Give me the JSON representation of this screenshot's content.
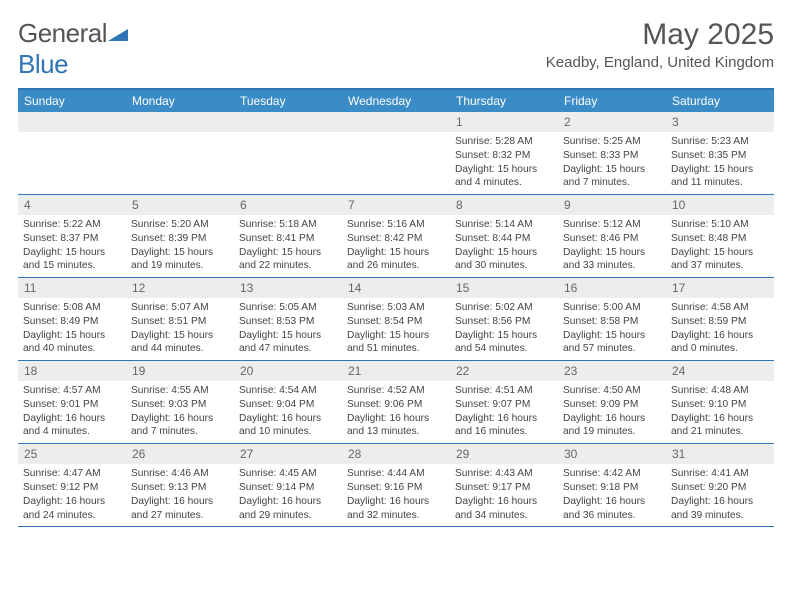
{
  "logo": {
    "text1": "General",
    "text2": "Blue"
  },
  "title": "May 2025",
  "location": "Keadby, England, United Kingdom",
  "colors": {
    "accent": "#2f75b5",
    "header_bg": "#3b8bc6",
    "daynum_bg": "#ededed",
    "text": "#555555"
  },
  "day_names": [
    "Sunday",
    "Monday",
    "Tuesday",
    "Wednesday",
    "Thursday",
    "Friday",
    "Saturday"
  ],
  "weeks": [
    [
      {
        "n": "",
        "sr": "",
        "ss": "",
        "dl1": "",
        "dl2": ""
      },
      {
        "n": "",
        "sr": "",
        "ss": "",
        "dl1": "",
        "dl2": ""
      },
      {
        "n": "",
        "sr": "",
        "ss": "",
        "dl1": "",
        "dl2": ""
      },
      {
        "n": "",
        "sr": "",
        "ss": "",
        "dl1": "",
        "dl2": ""
      },
      {
        "n": "1",
        "sr": "Sunrise: 5:28 AM",
        "ss": "Sunset: 8:32 PM",
        "dl1": "Daylight: 15 hours",
        "dl2": "and 4 minutes."
      },
      {
        "n": "2",
        "sr": "Sunrise: 5:25 AM",
        "ss": "Sunset: 8:33 PM",
        "dl1": "Daylight: 15 hours",
        "dl2": "and 7 minutes."
      },
      {
        "n": "3",
        "sr": "Sunrise: 5:23 AM",
        "ss": "Sunset: 8:35 PM",
        "dl1": "Daylight: 15 hours",
        "dl2": "and 11 minutes."
      }
    ],
    [
      {
        "n": "4",
        "sr": "Sunrise: 5:22 AM",
        "ss": "Sunset: 8:37 PM",
        "dl1": "Daylight: 15 hours",
        "dl2": "and 15 minutes."
      },
      {
        "n": "5",
        "sr": "Sunrise: 5:20 AM",
        "ss": "Sunset: 8:39 PM",
        "dl1": "Daylight: 15 hours",
        "dl2": "and 19 minutes."
      },
      {
        "n": "6",
        "sr": "Sunrise: 5:18 AM",
        "ss": "Sunset: 8:41 PM",
        "dl1": "Daylight: 15 hours",
        "dl2": "and 22 minutes."
      },
      {
        "n": "7",
        "sr": "Sunrise: 5:16 AM",
        "ss": "Sunset: 8:42 PM",
        "dl1": "Daylight: 15 hours",
        "dl2": "and 26 minutes."
      },
      {
        "n": "8",
        "sr": "Sunrise: 5:14 AM",
        "ss": "Sunset: 8:44 PM",
        "dl1": "Daylight: 15 hours",
        "dl2": "and 30 minutes."
      },
      {
        "n": "9",
        "sr": "Sunrise: 5:12 AM",
        "ss": "Sunset: 8:46 PM",
        "dl1": "Daylight: 15 hours",
        "dl2": "and 33 minutes."
      },
      {
        "n": "10",
        "sr": "Sunrise: 5:10 AM",
        "ss": "Sunset: 8:48 PM",
        "dl1": "Daylight: 15 hours",
        "dl2": "and 37 minutes."
      }
    ],
    [
      {
        "n": "11",
        "sr": "Sunrise: 5:08 AM",
        "ss": "Sunset: 8:49 PM",
        "dl1": "Daylight: 15 hours",
        "dl2": "and 40 minutes."
      },
      {
        "n": "12",
        "sr": "Sunrise: 5:07 AM",
        "ss": "Sunset: 8:51 PM",
        "dl1": "Daylight: 15 hours",
        "dl2": "and 44 minutes."
      },
      {
        "n": "13",
        "sr": "Sunrise: 5:05 AM",
        "ss": "Sunset: 8:53 PM",
        "dl1": "Daylight: 15 hours",
        "dl2": "and 47 minutes."
      },
      {
        "n": "14",
        "sr": "Sunrise: 5:03 AM",
        "ss": "Sunset: 8:54 PM",
        "dl1": "Daylight: 15 hours",
        "dl2": "and 51 minutes."
      },
      {
        "n": "15",
        "sr": "Sunrise: 5:02 AM",
        "ss": "Sunset: 8:56 PM",
        "dl1": "Daylight: 15 hours",
        "dl2": "and 54 minutes."
      },
      {
        "n": "16",
        "sr": "Sunrise: 5:00 AM",
        "ss": "Sunset: 8:58 PM",
        "dl1": "Daylight: 15 hours",
        "dl2": "and 57 minutes."
      },
      {
        "n": "17",
        "sr": "Sunrise: 4:58 AM",
        "ss": "Sunset: 8:59 PM",
        "dl1": "Daylight: 16 hours",
        "dl2": "and 0 minutes."
      }
    ],
    [
      {
        "n": "18",
        "sr": "Sunrise: 4:57 AM",
        "ss": "Sunset: 9:01 PM",
        "dl1": "Daylight: 16 hours",
        "dl2": "and 4 minutes."
      },
      {
        "n": "19",
        "sr": "Sunrise: 4:55 AM",
        "ss": "Sunset: 9:03 PM",
        "dl1": "Daylight: 16 hours",
        "dl2": "and 7 minutes."
      },
      {
        "n": "20",
        "sr": "Sunrise: 4:54 AM",
        "ss": "Sunset: 9:04 PM",
        "dl1": "Daylight: 16 hours",
        "dl2": "and 10 minutes."
      },
      {
        "n": "21",
        "sr": "Sunrise: 4:52 AM",
        "ss": "Sunset: 9:06 PM",
        "dl1": "Daylight: 16 hours",
        "dl2": "and 13 minutes."
      },
      {
        "n": "22",
        "sr": "Sunrise: 4:51 AM",
        "ss": "Sunset: 9:07 PM",
        "dl1": "Daylight: 16 hours",
        "dl2": "and 16 minutes."
      },
      {
        "n": "23",
        "sr": "Sunrise: 4:50 AM",
        "ss": "Sunset: 9:09 PM",
        "dl1": "Daylight: 16 hours",
        "dl2": "and 19 minutes."
      },
      {
        "n": "24",
        "sr": "Sunrise: 4:48 AM",
        "ss": "Sunset: 9:10 PM",
        "dl1": "Daylight: 16 hours",
        "dl2": "and 21 minutes."
      }
    ],
    [
      {
        "n": "25",
        "sr": "Sunrise: 4:47 AM",
        "ss": "Sunset: 9:12 PM",
        "dl1": "Daylight: 16 hours",
        "dl2": "and 24 minutes."
      },
      {
        "n": "26",
        "sr": "Sunrise: 4:46 AM",
        "ss": "Sunset: 9:13 PM",
        "dl1": "Daylight: 16 hours",
        "dl2": "and 27 minutes."
      },
      {
        "n": "27",
        "sr": "Sunrise: 4:45 AM",
        "ss": "Sunset: 9:14 PM",
        "dl1": "Daylight: 16 hours",
        "dl2": "and 29 minutes."
      },
      {
        "n": "28",
        "sr": "Sunrise: 4:44 AM",
        "ss": "Sunset: 9:16 PM",
        "dl1": "Daylight: 16 hours",
        "dl2": "and 32 minutes."
      },
      {
        "n": "29",
        "sr": "Sunrise: 4:43 AM",
        "ss": "Sunset: 9:17 PM",
        "dl1": "Daylight: 16 hours",
        "dl2": "and 34 minutes."
      },
      {
        "n": "30",
        "sr": "Sunrise: 4:42 AM",
        "ss": "Sunset: 9:18 PM",
        "dl1": "Daylight: 16 hours",
        "dl2": "and 36 minutes."
      },
      {
        "n": "31",
        "sr": "Sunrise: 4:41 AM",
        "ss": "Sunset: 9:20 PM",
        "dl1": "Daylight: 16 hours",
        "dl2": "and 39 minutes."
      }
    ]
  ]
}
